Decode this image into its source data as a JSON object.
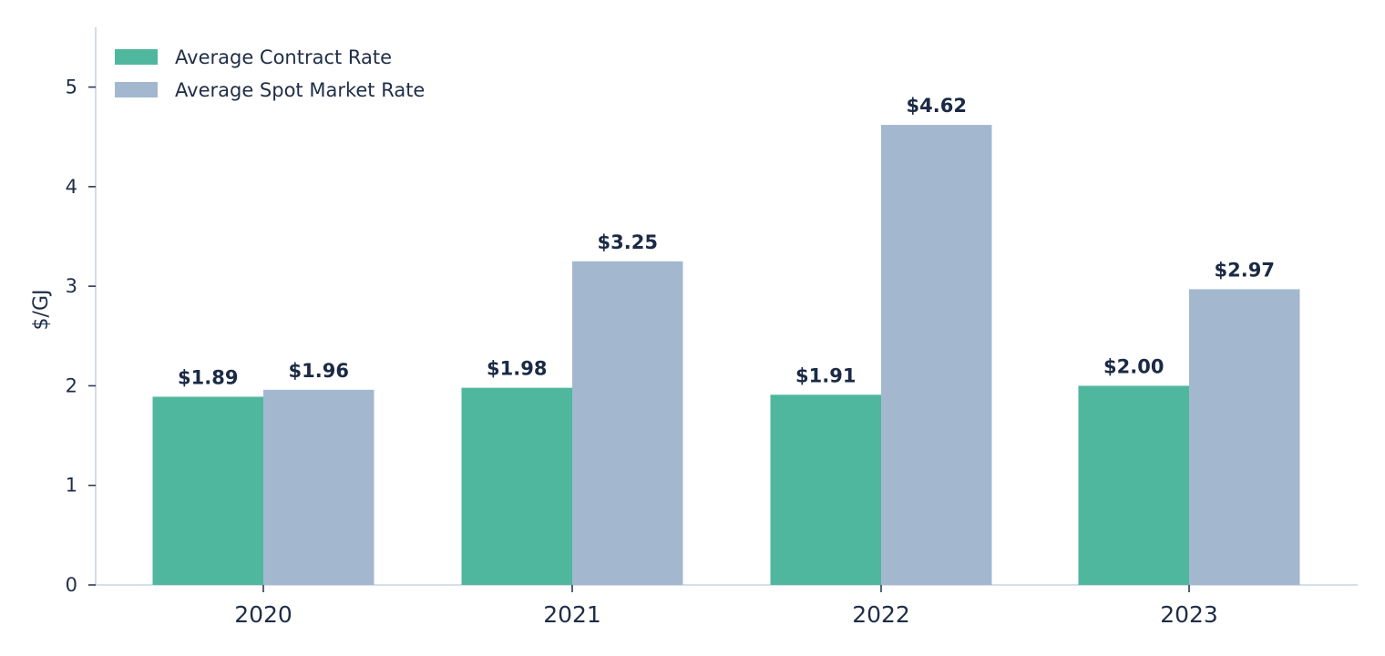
{
  "chart_data": {
    "type": "bar",
    "categories": [
      "2020",
      "2021",
      "2022",
      "2023"
    ],
    "series": [
      {
        "name": "Average Contract Rate",
        "color": "#4fb79e",
        "values": [
          1.89,
          1.98,
          1.91,
          2.0
        ],
        "labels": [
          "$1.89",
          "$1.98",
          "$1.91",
          "$2.00"
        ]
      },
      {
        "name": "Average Spot Market Rate",
        "color": "#a3b8cf",
        "values": [
          1.96,
          3.25,
          4.62,
          2.97
        ],
        "labels": [
          "$1.96",
          "$3.25",
          "$4.62",
          "$2.97"
        ]
      }
    ],
    "ylabel": "$/GJ",
    "xlabel": "",
    "ylim": [
      0,
      5.6
    ],
    "yticks": [
      0,
      1,
      2,
      3,
      4,
      5
    ],
    "legend_position": "top-left",
    "grid": false,
    "axis_color": "#c9d3e1",
    "text_color": "#1f2d47"
  }
}
